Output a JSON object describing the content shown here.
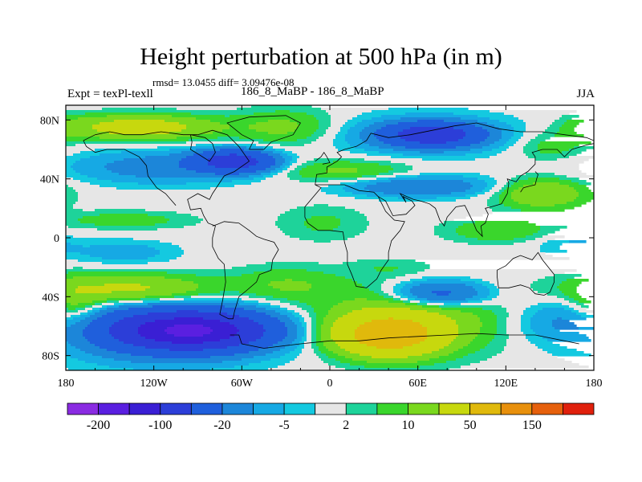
{
  "chart_data": {
    "type": "heatmap",
    "title": "Height perturbation at 500 hPa (in m)",
    "stats_text": "rmsd= 13.0455 diff= 3.09476e-08",
    "left_label": "Expt = texPl-texll",
    "subtitle": "186_8_MaBP - 186_8_MaBP",
    "right_label": "JJA",
    "x_ticks": [
      {
        "value": -180,
        "label": "180"
      },
      {
        "value": -120,
        "label": "120W"
      },
      {
        "value": -60,
        "label": "60W"
      },
      {
        "value": 0,
        "label": "0"
      },
      {
        "value": 60,
        "label": "60E"
      },
      {
        "value": 120,
        "label": "120E"
      },
      {
        "value": 180,
        "label": "180"
      }
    ],
    "y_ticks": [
      {
        "value": 80,
        "label": "80N"
      },
      {
        "value": 40,
        "label": "40N"
      },
      {
        "value": 0,
        "label": "0"
      },
      {
        "value": -40,
        "label": "40S"
      },
      {
        "value": -80,
        "label": "80S"
      }
    ],
    "xlim": [
      -180,
      180
    ],
    "ylim": [
      -90,
      90
    ],
    "colorbar": {
      "levels": [
        -200,
        -150,
        -100,
        -50,
        -20,
        -10,
        -5,
        -2,
        2,
        5,
        10,
        20,
        50,
        100,
        150,
        200
      ],
      "colors": [
        "#8a2be2",
        "#5a1fe0",
        "#3a1fd4",
        "#2c3ed8",
        "#1f5fdc",
        "#1c86d9",
        "#16a9e4",
        "#14c9e0",
        "#e6e6e6",
        "#1ed39a",
        "#3ad62c",
        "#7ad81e",
        "#c7d80e",
        "#e0b90c",
        "#e8900c",
        "#e6600c",
        "#e0200c"
      ],
      "labels": [
        {
          "level": -200,
          "text": "-200"
        },
        {
          "level": -100,
          "text": "-100"
        },
        {
          "level": -20,
          "text": "-20"
        },
        {
          "level": -5,
          "text": "-5"
        },
        {
          "level": 2,
          "text": "2"
        },
        {
          "level": 10,
          "text": "10"
        },
        {
          "level": 50,
          "text": "50"
        },
        {
          "level": 150,
          "text": "150"
        }
      ]
    },
    "field_centers": [
      {
        "lon": -95,
        "lat": -63,
        "value": -140,
        "sx": 45,
        "sy": 11
      },
      {
        "lon": -110,
        "lat": -63,
        "value": -30,
        "sx": 70,
        "sy": 20
      },
      {
        "lon": 40,
        "lat": -66,
        "value": 70,
        "sx": 33,
        "sy": 13
      },
      {
        "lon": 55,
        "lat": -55,
        "value": 18,
        "sx": 65,
        "sy": 22
      },
      {
        "lon": 75,
        "lat": -38,
        "value": -30,
        "sx": 32,
        "sy": 9
      },
      {
        "lon": 155,
        "lat": -56,
        "value": -9,
        "sx": 35,
        "sy": 14
      },
      {
        "lon": -135,
        "lat": -35,
        "value": 25,
        "sx": 55,
        "sy": 10
      },
      {
        "lon": -30,
        "lat": -32,
        "value": 10,
        "sx": 38,
        "sy": 12
      },
      {
        "lon": -175,
        "lat": -50,
        "value": 14,
        "sx": 20,
        "sy": 18
      },
      {
        "lon": -140,
        "lat": -10,
        "value": -8,
        "sx": 35,
        "sy": 8
      },
      {
        "lon": 115,
        "lat": 5,
        "value": 10,
        "sx": 35,
        "sy": 8
      },
      {
        "lon": 165,
        "lat": -5,
        "value": -6,
        "sx": 25,
        "sy": 8
      },
      {
        "lon": 40,
        "lat": -20,
        "value": 4,
        "sx": 25,
        "sy": 6
      },
      {
        "lon": -140,
        "lat": 12,
        "value": 8,
        "sx": 45,
        "sy": 6
      },
      {
        "lon": -65,
        "lat": 52,
        "value": -70,
        "sx": 25,
        "sy": 7
      },
      {
        "lon": -115,
        "lat": 48,
        "value": -15,
        "sx": 60,
        "sy": 11
      },
      {
        "lon": 70,
        "lat": 70,
        "value": -75,
        "sx": 28,
        "sy": 7
      },
      {
        "lon": 65,
        "lat": 70,
        "value": -15,
        "sx": 60,
        "sy": 13
      },
      {
        "lon": -130,
        "lat": 75,
        "value": 30,
        "sx": 50,
        "sy": 8
      },
      {
        "lon": -30,
        "lat": 75,
        "value": 12,
        "sx": 35,
        "sy": 12
      },
      {
        "lon": 60,
        "lat": 35,
        "value": -20,
        "sx": 50,
        "sy": 7
      },
      {
        "lon": 10,
        "lat": 45,
        "value": 12,
        "sx": 45,
        "sy": 8
      },
      {
        "lon": 145,
        "lat": 30,
        "value": 20,
        "sx": 30,
        "sy": 10
      },
      {
        "lon": 150,
        "lat": 62,
        "value": 8,
        "sx": 25,
        "sy": 10
      },
      {
        "lon": -5,
        "lat": 10,
        "value": 6,
        "sx": 30,
        "sy": 12
      },
      {
        "lon": 175,
        "lat": 75,
        "value": 5,
        "sx": 15,
        "sy": 10
      }
    ],
    "coastlines": [
      [
        [
          -168,
          66
        ],
        [
          -160,
          70
        ],
        [
          -150,
          72
        ],
        [
          -140,
          70
        ],
        [
          -128,
          70
        ],
        [
          -115,
          72
        ],
        [
          -100,
          70
        ],
        [
          -90,
          70
        ],
        [
          -80,
          73
        ],
        [
          -70,
          70
        ],
        [
          -62,
          62
        ],
        [
          -55,
          52
        ],
        [
          -65,
          45
        ],
        [
          -72,
          42
        ],
        [
          -76,
          36
        ],
        [
          -80,
          30
        ],
        [
          -82,
          26
        ],
        [
          -90,
          30
        ],
        [
          -97,
          26
        ],
        [
          -95,
          19
        ],
        [
          -88,
          20
        ],
        [
          -86,
          15
        ],
        [
          -83,
          10
        ],
        [
          -78,
          8
        ],
        [
          -80,
          0
        ],
        [
          -80,
          -6
        ],
        [
          -76,
          -14
        ],
        [
          -72,
          -18
        ],
        [
          -71,
          -30
        ],
        [
          -73,
          -42
        ],
        [
          -75,
          -52
        ],
        [
          -69,
          -55
        ],
        [
          -66,
          -55
        ],
        [
          -65,
          -50
        ],
        [
          -62,
          -40
        ],
        [
          -57,
          -36
        ],
        [
          -50,
          -30
        ],
        [
          -48,
          -25
        ],
        [
          -40,
          -22
        ],
        [
          -39,
          -15
        ],
        [
          -35,
          -8
        ],
        [
          -38,
          -3
        ],
        [
          -45,
          -1
        ],
        [
          -50,
          1
        ],
        [
          -55,
          5
        ],
        [
          -62,
          10
        ],
        [
          -72,
          11
        ],
        [
          -77,
          9
        ],
        [
          -80,
          8
        ]
      ],
      [
        [
          -105,
          22
        ],
        [
          -112,
          30
        ],
        [
          -118,
          34
        ],
        [
          -124,
          42
        ],
        [
          -125,
          49
        ],
        [
          -130,
          55
        ],
        [
          -140,
          60
        ],
        [
          -152,
          60
        ],
        [
          -160,
          58
        ],
        [
          -166,
          62
        ],
        [
          -168,
          66
        ]
      ],
      [
        [
          -55,
          60
        ],
        [
          -45,
          60
        ],
        [
          -40,
          65
        ],
        [
          -25,
          70
        ],
        [
          -20,
          78
        ],
        [
          -30,
          83
        ],
        [
          -55,
          82
        ],
        [
          -70,
          78
        ],
        [
          -60,
          70
        ],
        [
          -52,
          66
        ],
        [
          -55,
          60
        ]
      ],
      [
        [
          -10,
          36
        ],
        [
          -9,
          43
        ],
        [
          -2,
          44
        ],
        [
          -2,
          48
        ],
        [
          5,
          52
        ],
        [
          8,
          55
        ],
        [
          5,
          58
        ],
        [
          10,
          60
        ],
        [
          18,
          62
        ],
        [
          25,
          66
        ],
        [
          28,
          71
        ],
        [
          40,
          68
        ],
        [
          55,
          70
        ],
        [
          70,
          73
        ],
        [
          85,
          76
        ],
        [
          100,
          78
        ],
        [
          115,
          74
        ],
        [
          130,
          72
        ],
        [
          145,
          72
        ],
        [
          160,
          70
        ],
        [
          175,
          68
        ],
        [
          180,
          66
        ]
      ],
      [
        [
          -10,
          36
        ],
        [
          -6,
          34
        ],
        [
          -17,
          21
        ],
        [
          -17,
          14
        ],
        [
          -15,
          10
        ],
        [
          -8,
          5
        ],
        [
          0,
          5
        ],
        [
          9,
          4
        ],
        [
          10,
          -3
        ],
        [
          12,
          -10
        ],
        [
          12,
          -18
        ],
        [
          15,
          -25
        ],
        [
          18,
          -33
        ],
        [
          25,
          -34
        ],
        [
          32,
          -28
        ],
        [
          35,
          -22
        ],
        [
          40,
          -15
        ],
        [
          40,
          -10
        ],
        [
          42,
          -2
        ],
        [
          48,
          5
        ],
        [
          51,
          11
        ],
        [
          44,
          12
        ],
        [
          38,
          18
        ],
        [
          33,
          28
        ],
        [
          30,
          31
        ],
        [
          20,
          32
        ],
        [
          10,
          36
        ],
        [
          0,
          36
        ],
        [
          -10,
          36
        ]
      ],
      [
        [
          33,
          28
        ],
        [
          38,
          25
        ],
        [
          43,
          15
        ],
        [
          52,
          16
        ],
        [
          58,
          22
        ],
        [
          56,
          25
        ],
        [
          50,
          28
        ],
        [
          52,
          24
        ],
        [
          48,
          30
        ],
        [
          57,
          26
        ],
        [
          62,
          25
        ],
        [
          68,
          23
        ],
        [
          72,
          20
        ],
        [
          75,
          12
        ],
        [
          78,
          8
        ],
        [
          80,
          14
        ],
        [
          86,
          21
        ],
        [
          92,
          22
        ],
        [
          95,
          16
        ],
        [
          98,
          10
        ],
        [
          100,
          5
        ],
        [
          104,
          1
        ],
        [
          103,
          8
        ],
        [
          106,
          10
        ],
        [
          108,
          16
        ],
        [
          106,
          20
        ],
        [
          110,
          21
        ],
        [
          117,
          23
        ],
        [
          121,
          30
        ],
        [
          122,
          37
        ],
        [
          121,
          40
        ],
        [
          127,
          38
        ],
        [
          130,
          42
        ],
        [
          135,
          45
        ],
        [
          140,
          50
        ],
        [
          140,
          55
        ],
        [
          138,
          58
        ],
        [
          145,
          60
        ],
        [
          155,
          60
        ],
        [
          160,
          55
        ],
        [
          165,
          60
        ],
        [
          175,
          63
        ],
        [
          180,
          64
        ]
      ],
      [
        [
          114,
          -22
        ],
        [
          114,
          -26
        ],
        [
          115,
          -34
        ],
        [
          122,
          -34
        ],
        [
          130,
          -32
        ],
        [
          136,
          -34
        ],
        [
          140,
          -38
        ],
        [
          146,
          -39
        ],
        [
          150,
          -37
        ],
        [
          153,
          -30
        ],
        [
          153,
          -25
        ],
        [
          145,
          -15
        ],
        [
          142,
          -10
        ],
        [
          138,
          -15
        ],
        [
          130,
          -12
        ],
        [
          125,
          -14
        ],
        [
          120,
          -19
        ],
        [
          114,
          -22
        ]
      ],
      [
        [
          -68,
          -66
        ],
        [
          -62,
          -66
        ],
        [
          -60,
          -72
        ],
        [
          -45,
          -75
        ],
        [
          -20,
          -72
        ],
        [
          0,
          -70
        ],
        [
          20,
          -70
        ],
        [
          40,
          -68
        ],
        [
          60,
          -67
        ],
        [
          80,
          -66
        ],
        [
          100,
          -65
        ],
        [
          120,
          -66
        ],
        [
          140,
          -66
        ],
        [
          160,
          -70
        ],
        [
          170,
          -72
        ]
      ],
      [
        [
          -10,
          52
        ],
        [
          -6,
          55
        ],
        [
          -4,
          58
        ],
        [
          -2,
          55
        ],
        [
          0,
          51
        ],
        [
          -5,
          50
        ]
      ],
      [
        [
          130,
          31
        ],
        [
          132,
          34
        ],
        [
          136,
          35
        ],
        [
          140,
          36
        ],
        [
          141,
          40
        ],
        [
          142,
          43
        ],
        [
          140,
          45
        ]
      ],
      [
        [
          -95,
          70
        ],
        [
          -85,
          68
        ],
        [
          -80,
          64
        ],
        [
          -78,
          58
        ],
        [
          -82,
          52
        ],
        [
          -90,
          57
        ],
        [
          -95,
          60
        ],
        [
          -94,
          65
        ],
        [
          -95,
          70
        ]
      ]
    ]
  }
}
